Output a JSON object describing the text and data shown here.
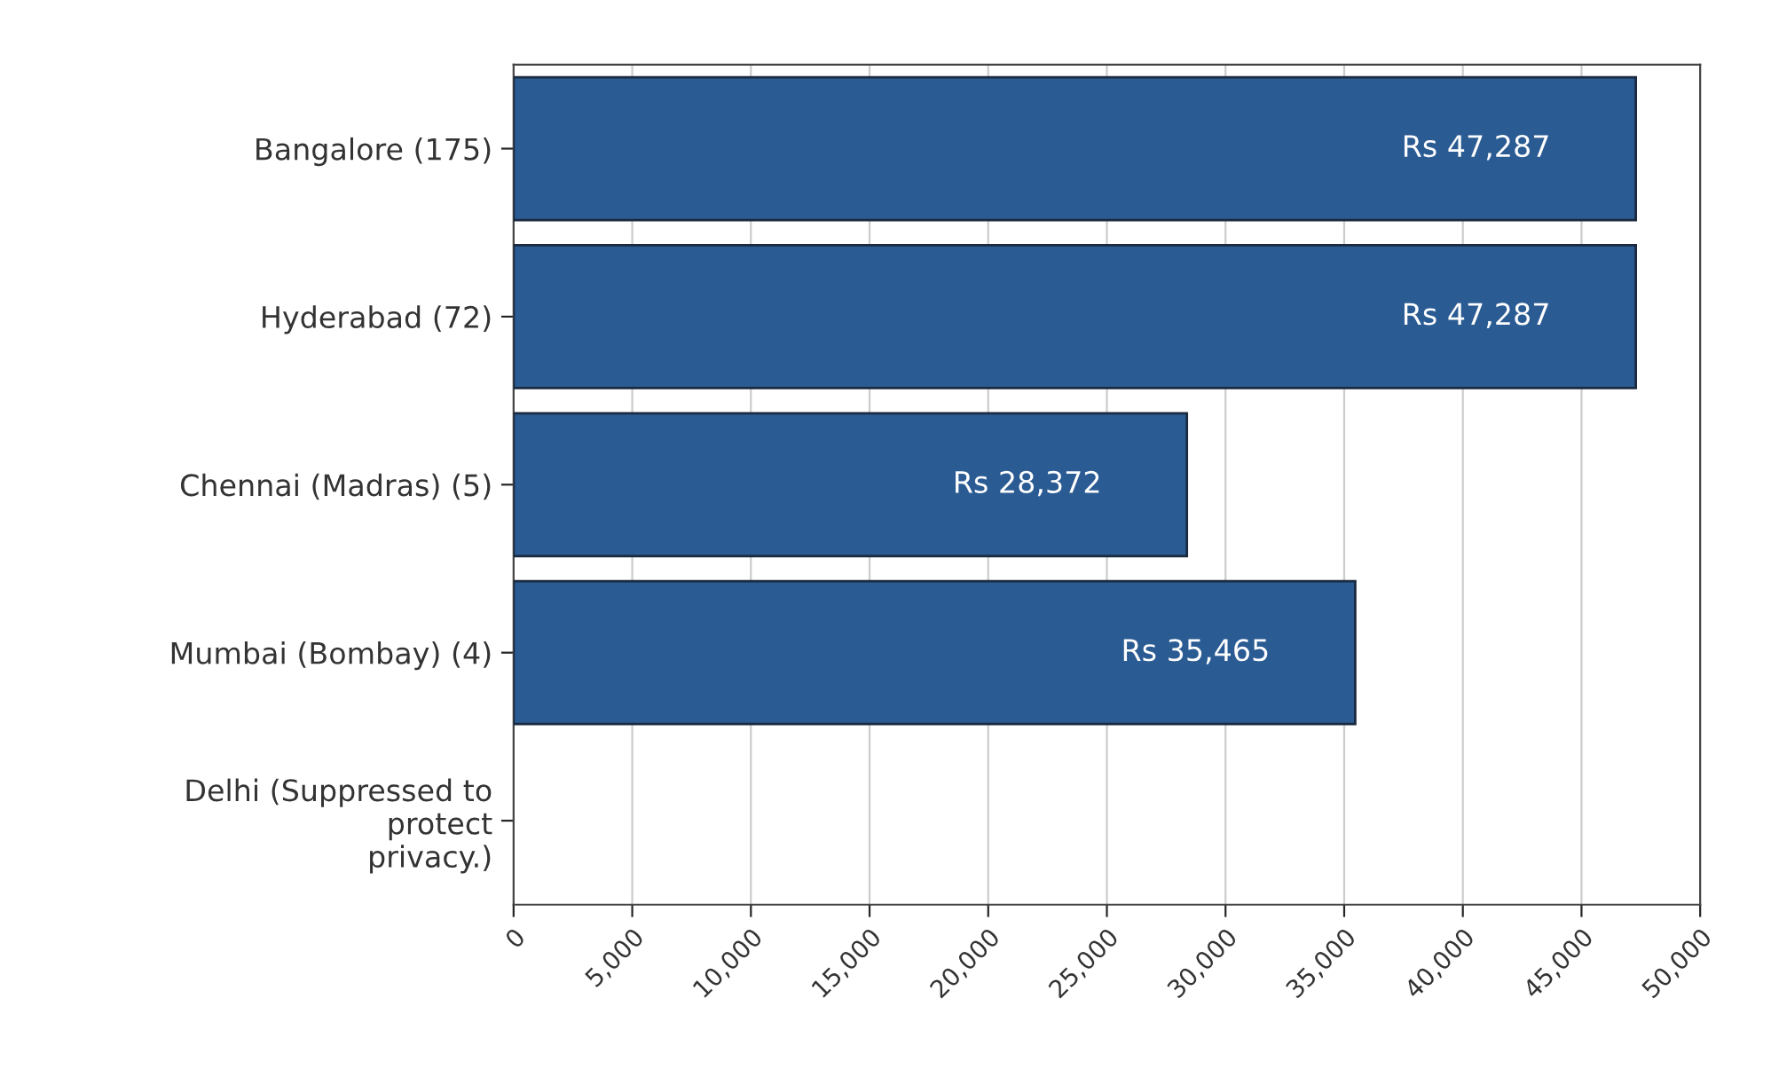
{
  "chart_data": {
    "type": "bar",
    "orientation": "horizontal",
    "categories": [
      "Bangalore (175)",
      "Hyderabad (72)",
      "Chennai (Madras) (5)",
      "Mumbai (Bombay) (4)",
      "Delhi (Suppressed to\nprotect\nprivacy.)"
    ],
    "values": [
      47287,
      47287,
      28372,
      35465,
      null
    ],
    "value_labels": [
      "Rs 47,287",
      "Rs 47,287",
      "Rs 28,372",
      "Rs 35,465",
      null
    ],
    "color": "#2b5b93",
    "xlim": [
      0,
      50000
    ],
    "xticks": [
      0,
      {
        "value": 5000,
        "label": "5,000"
      },
      {
        "value": 10000,
        "label": "10,000"
      },
      {
        "value": 15000,
        "label": "15,000"
      },
      {
        "value": 20000,
        "label": "20,000"
      },
      {
        "value": 25000,
        "label": "25,000"
      },
      {
        "value": 30000,
        "label": "30,000"
      },
      {
        "value": 35000,
        "label": "35,000"
      },
      {
        "value": 40000,
        "label": "40,000"
      },
      {
        "value": 45000,
        "label": "45,000"
      },
      {
        "value": 50000,
        "label": "50,000"
      }
    ],
    "grid": "x",
    "legend": false
  }
}
